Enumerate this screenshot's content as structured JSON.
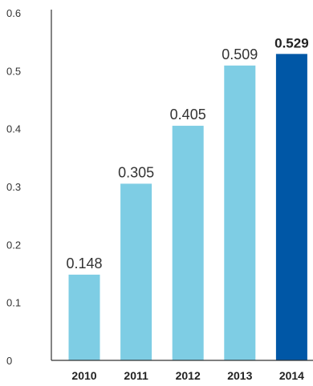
{
  "chart_data": {
    "type": "bar",
    "categories": [
      "2010",
      "2011",
      "2012",
      "2013",
      "2014"
    ],
    "values": [
      0.148,
      0.305,
      0.405,
      0.509,
      0.529
    ],
    "data_labels": [
      "0.148",
      "0.305",
      "0.405",
      "0.509",
      "0.529"
    ],
    "highlight_index": 4,
    "ylim": [
      0,
      0.6
    ],
    "yticks": [
      "0",
      "0.1",
      "0.2",
      "0.3",
      "0.4",
      "0.5",
      "0.6"
    ],
    "grid": false,
    "title": "",
    "xlabel": "",
    "ylabel": "",
    "colors": {
      "bar": "#7ecde4",
      "highlight": "#0057a6",
      "axis": "#333333"
    }
  }
}
